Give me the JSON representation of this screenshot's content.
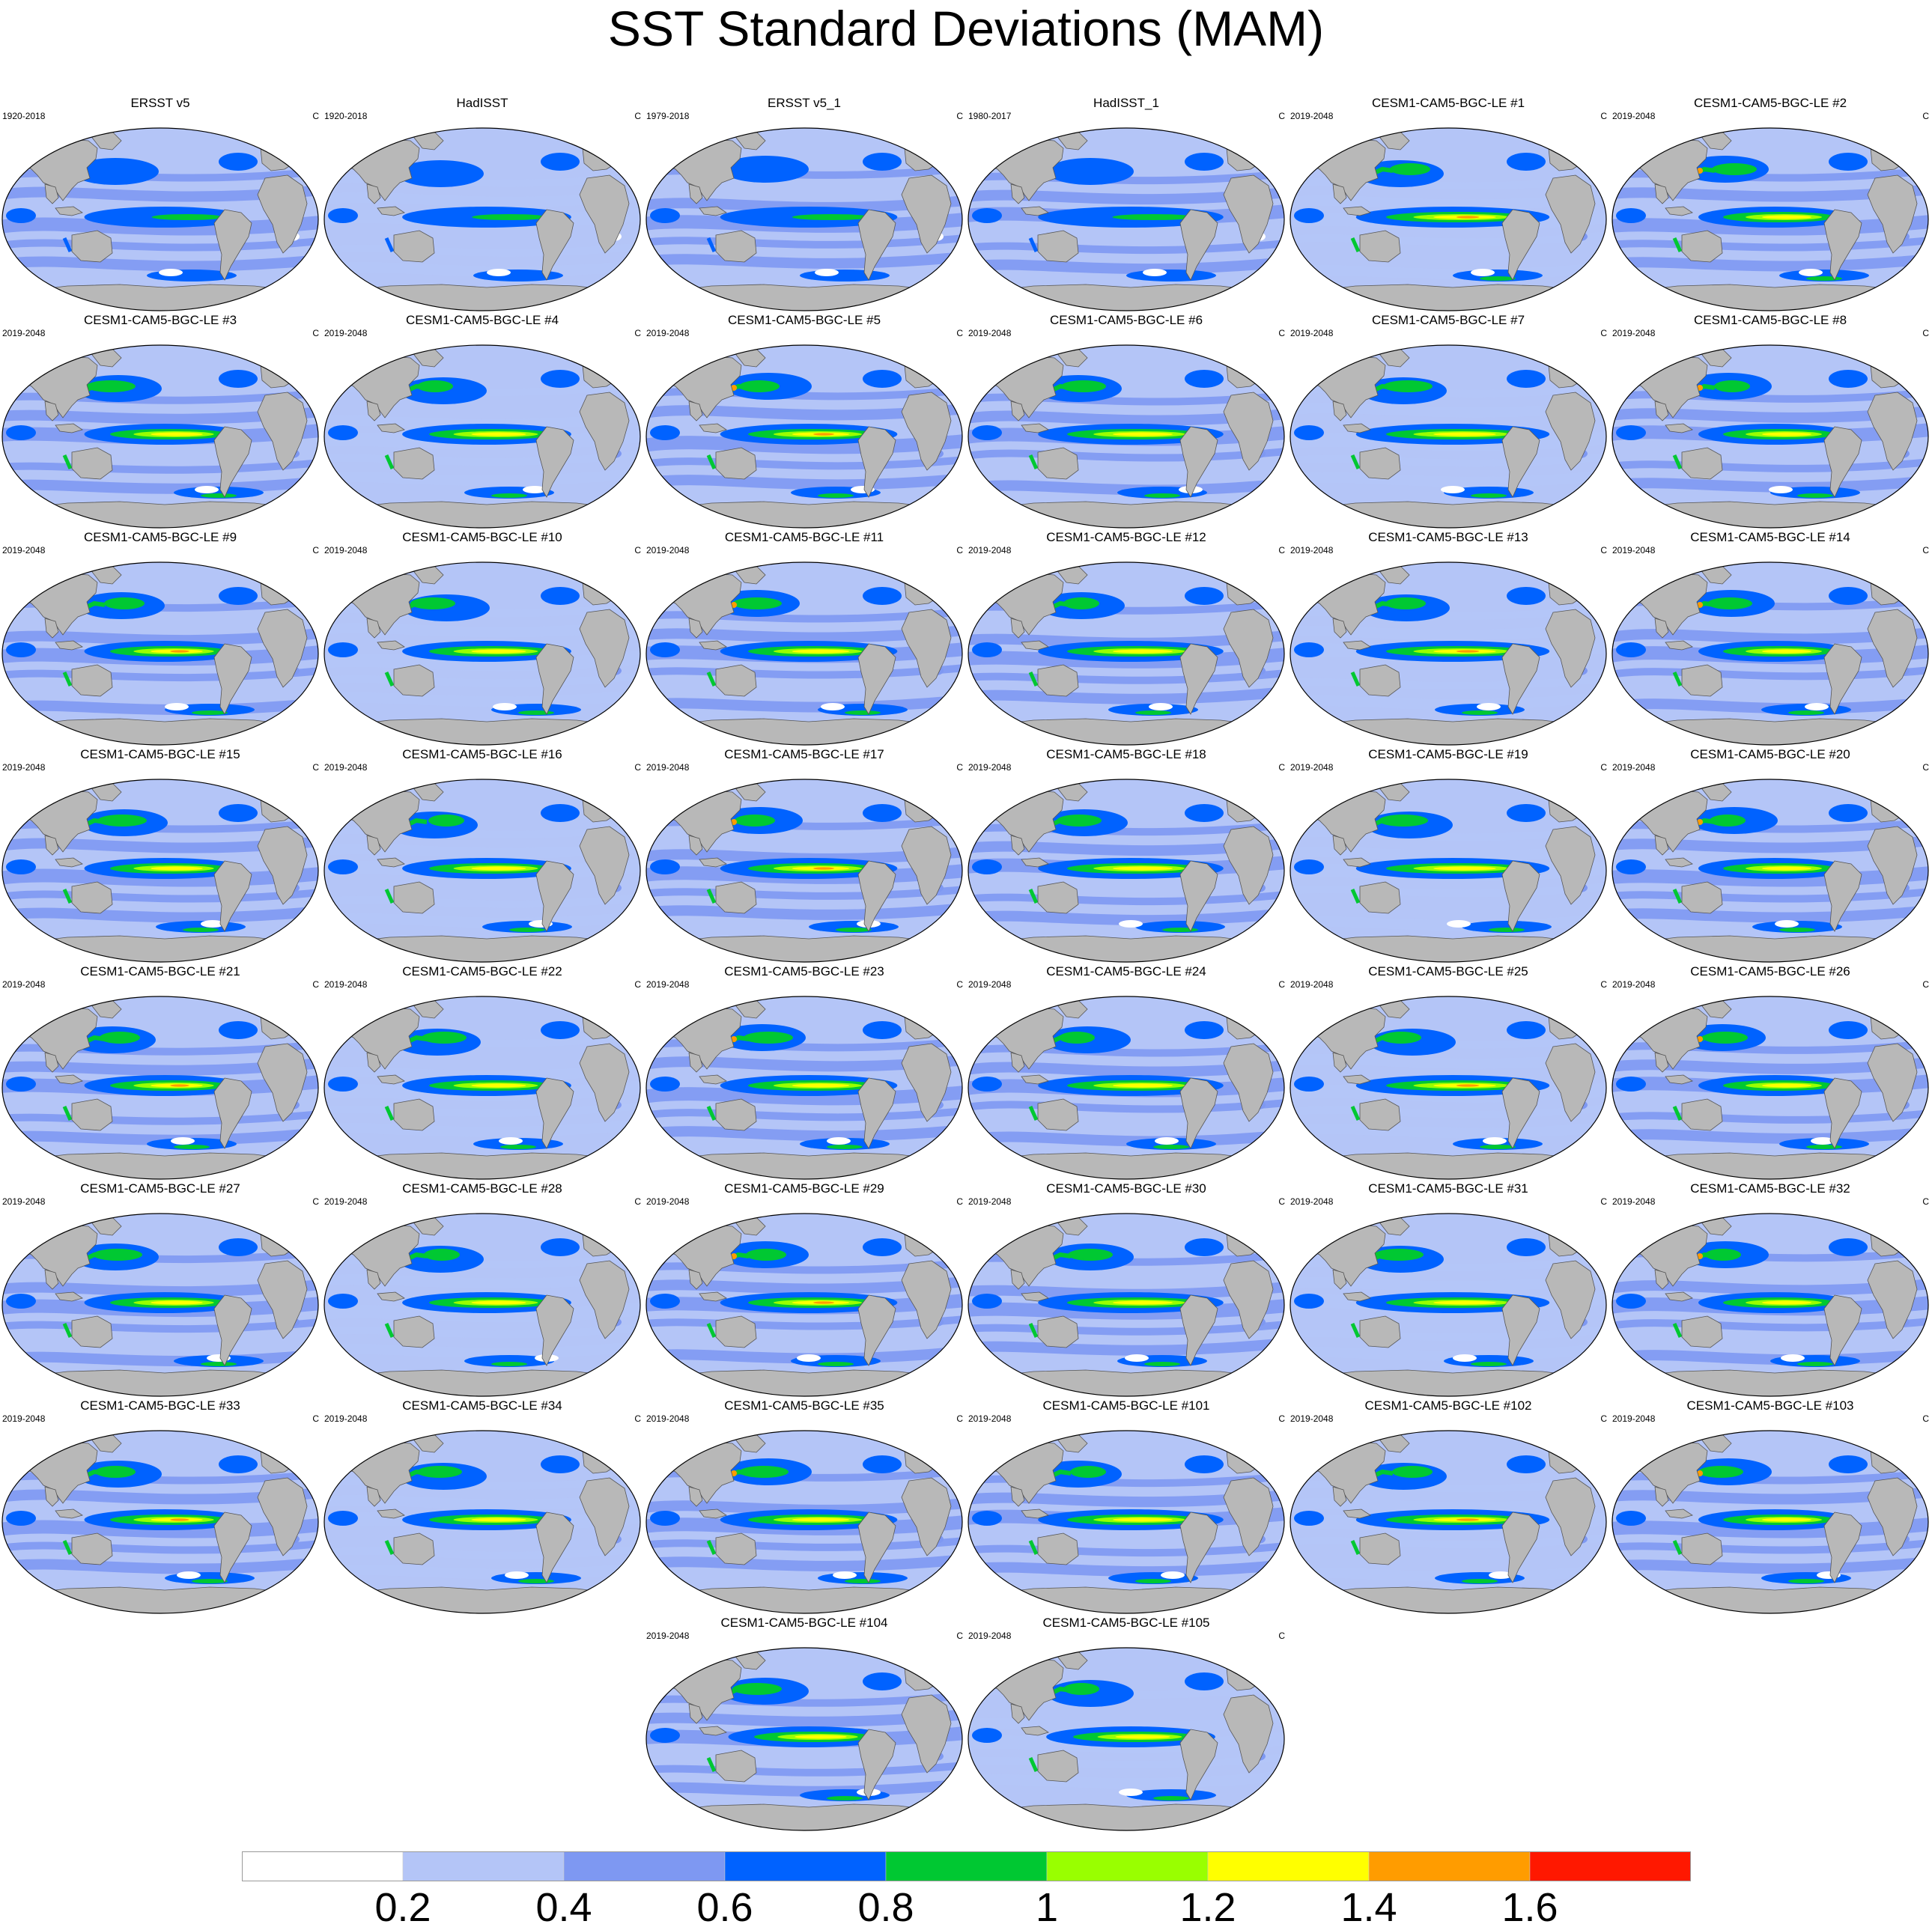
{
  "title": "SST Standard Deviations (MAM)",
  "units": "C",
  "colors": {
    "land": "#b8b8b8",
    "levels": [
      "#ffffff",
      "#b4c5f7",
      "#7e98f2",
      "#0062ff",
      "#00c832",
      "#99ff00",
      "#ffff00",
      "#ff9c00",
      "#ff1800"
    ]
  },
  "panels": [
    {
      "title": "ERSST v5",
      "period": "1920-2018"
    },
    {
      "title": "HadISST",
      "period": "1920-2018"
    },
    {
      "title": "ERSST v5_1",
      "period": "1979-2018"
    },
    {
      "title": "HadISST_1",
      "period": "1980-2017"
    },
    {
      "title": "CESM1-CAM5-BGC-LE #1",
      "period": "2019-2048"
    },
    {
      "title": "CESM1-CAM5-BGC-LE #2",
      "period": "2019-2048"
    },
    {
      "title": "CESM1-CAM5-BGC-LE #3",
      "period": "2019-2048"
    },
    {
      "title": "CESM1-CAM5-BGC-LE #4",
      "period": "2019-2048"
    },
    {
      "title": "CESM1-CAM5-BGC-LE #5",
      "period": "2019-2048"
    },
    {
      "title": "CESM1-CAM5-BGC-LE #6",
      "period": "2019-2048"
    },
    {
      "title": "CESM1-CAM5-BGC-LE #7",
      "period": "2019-2048"
    },
    {
      "title": "CESM1-CAM5-BGC-LE #8",
      "period": "2019-2048"
    },
    {
      "title": "CESM1-CAM5-BGC-LE #9",
      "period": "2019-2048"
    },
    {
      "title": "CESM1-CAM5-BGC-LE #10",
      "period": "2019-2048"
    },
    {
      "title": "CESM1-CAM5-BGC-LE #11",
      "period": "2019-2048"
    },
    {
      "title": "CESM1-CAM5-BGC-LE #12",
      "period": "2019-2048"
    },
    {
      "title": "CESM1-CAM5-BGC-LE #13",
      "period": "2019-2048"
    },
    {
      "title": "CESM1-CAM5-BGC-LE #14",
      "period": "2019-2048"
    },
    {
      "title": "CESM1-CAM5-BGC-LE #15",
      "period": "2019-2048"
    },
    {
      "title": "CESM1-CAM5-BGC-LE #16",
      "period": "2019-2048"
    },
    {
      "title": "CESM1-CAM5-BGC-LE #17",
      "period": "2019-2048"
    },
    {
      "title": "CESM1-CAM5-BGC-LE #18",
      "period": "2019-2048"
    },
    {
      "title": "CESM1-CAM5-BGC-LE #19",
      "period": "2019-2048"
    },
    {
      "title": "CESM1-CAM5-BGC-LE #20",
      "period": "2019-2048"
    },
    {
      "title": "CESM1-CAM5-BGC-LE #21",
      "period": "2019-2048"
    },
    {
      "title": "CESM1-CAM5-BGC-LE #22",
      "period": "2019-2048"
    },
    {
      "title": "CESM1-CAM5-BGC-LE #23",
      "period": "2019-2048"
    },
    {
      "title": "CESM1-CAM5-BGC-LE #24",
      "period": "2019-2048"
    },
    {
      "title": "CESM1-CAM5-BGC-LE #25",
      "period": "2019-2048"
    },
    {
      "title": "CESM1-CAM5-BGC-LE #26",
      "period": "2019-2048"
    },
    {
      "title": "CESM1-CAM5-BGC-LE #27",
      "period": "2019-2048"
    },
    {
      "title": "CESM1-CAM5-BGC-LE #28",
      "period": "2019-2048"
    },
    {
      "title": "CESM1-CAM5-BGC-LE #29",
      "period": "2019-2048"
    },
    {
      "title": "CESM1-CAM5-BGC-LE #30",
      "period": "2019-2048"
    },
    {
      "title": "CESM1-CAM5-BGC-LE #31",
      "period": "2019-2048"
    },
    {
      "title": "CESM1-CAM5-BGC-LE #32",
      "period": "2019-2048"
    },
    {
      "title": "CESM1-CAM5-BGC-LE #33",
      "period": "2019-2048"
    },
    {
      "title": "CESM1-CAM5-BGC-LE #34",
      "period": "2019-2048"
    },
    {
      "title": "CESM1-CAM5-BGC-LE #35",
      "period": "2019-2048"
    },
    {
      "title": "CESM1-CAM5-BGC-LE #101",
      "period": "2019-2048"
    },
    {
      "title": "CESM1-CAM5-BGC-LE #102",
      "period": "2019-2048"
    },
    {
      "title": "CESM1-CAM5-BGC-LE #103",
      "period": "2019-2048"
    },
    {
      "title": "CESM1-CAM5-BGC-LE #104",
      "period": "2019-2048"
    },
    {
      "title": "CESM1-CAM5-BGC-LE #105",
      "period": "2019-2048"
    }
  ],
  "chart_data": {
    "type": "heatmap",
    "projection": "Robinson",
    "variable": "SST standard deviation",
    "season": "MAM",
    "colorbar": {
      "levels": [
        0.2,
        0.4,
        0.6,
        0.8,
        1,
        1.2,
        1.4,
        1.6
      ],
      "tick_labels": [
        "0.2",
        "0.4",
        "0.6",
        "0.8",
        "1",
        "1.2",
        "1.4",
        "1.6"
      ]
    },
    "layout": {
      "rows": 8,
      "columns": 6,
      "panel_count": 44
    }
  }
}
